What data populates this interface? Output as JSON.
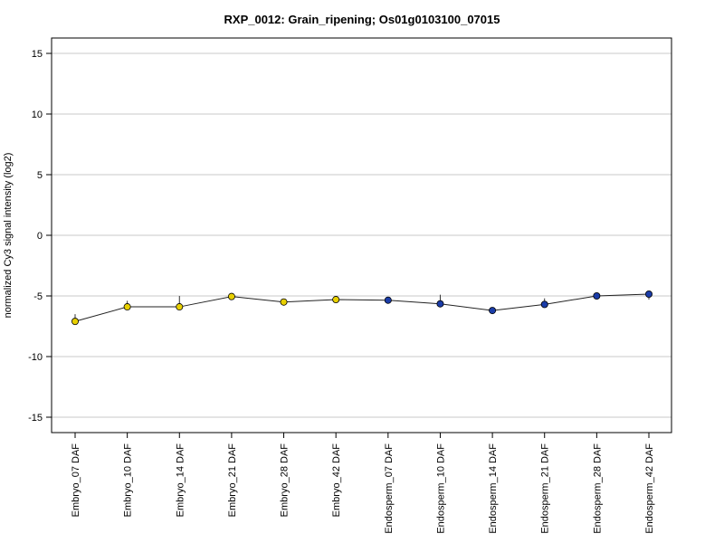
{
  "chart_data": {
    "type": "line",
    "title": "RXP_0012: Grain_ripening; Os01g0103100_07015",
    "xlabel": "",
    "ylabel": "normalized Cy3 signal intensity (log2)",
    "ylim": [
      -16.2,
      16.2
    ],
    "yticks": [
      -15,
      -10,
      -5,
      0,
      5,
      10,
      15
    ],
    "grid": "horizontal",
    "categories": [
      "Embryo_07 DAF",
      "Embryo_10 DAF",
      "Embryo_14 DAF",
      "Embryo_21 DAF",
      "Embryo_28 DAF",
      "Embryo_42 DAF",
      "Endosperm_07 DAF",
      "Endosperm_10 DAF",
      "Endosperm_14 DAF",
      "Endosperm_21 DAF",
      "Endosperm_28 DAF",
      "Endosperm_42 DAF"
    ],
    "series": [
      {
        "values": [
          -7.1,
          -5.9,
          -5.9,
          -5.05,
          -5.5,
          -5.3,
          -5.35,
          -5.65,
          -6.2,
          -5.7,
          -5.0,
          -4.85
        ],
        "error_high": [
          -6.5,
          -5.4,
          -5.0,
          -4.9,
          -5.3,
          -5.1,
          -5.2,
          -4.9,
          -6.1,
          -5.2,
          -4.9,
          -4.6
        ],
        "error_low": [
          -7.2,
          -6.0,
          -6.0,
          -5.2,
          -5.6,
          -5.4,
          -5.45,
          -5.8,
          -6.3,
          -5.85,
          -5.1,
          -5.3
        ],
        "marker_colors": [
          "#e8d000",
          "#e8d000",
          "#e8d000",
          "#e8d000",
          "#e8d000",
          "#e8d000",
          "#1a3ca8",
          "#1a3ca8",
          "#1a3ca8",
          "#1a3ca8",
          "#1a3ca8",
          "#1a3ca8"
        ]
      }
    ]
  }
}
